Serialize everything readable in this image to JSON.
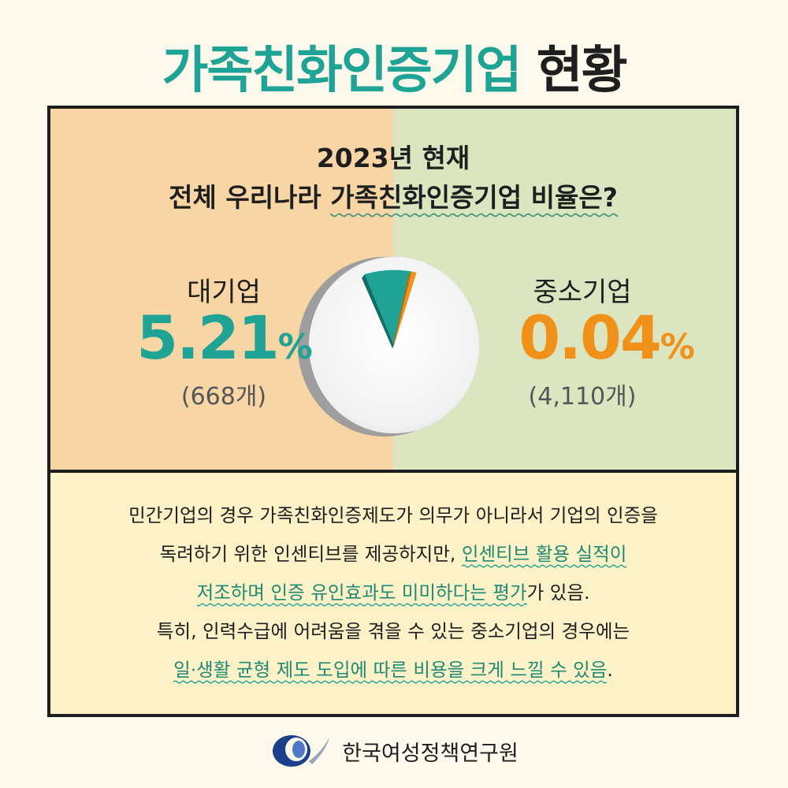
{
  "title": {
    "accent": "가족친화인증기업",
    "rest": "현황"
  },
  "question": {
    "line1": "2023년 현재",
    "line2_prefix": "전체 우리나라 ",
    "line2_highlight": "가족친화인증기업 비율은?"
  },
  "chart_data": {
    "type": "pie",
    "title": "2023년 현재 전체 우리나라 가족친화인증기업 비율은?",
    "categories": [
      "대기업",
      "중소기업"
    ],
    "values": [
      5.21,
      0.04
    ],
    "value_labels": [
      "5.21",
      "0.04"
    ],
    "unit": "%",
    "counts": [
      "(668개)",
      "(4,110개)"
    ],
    "colors": {
      "large": "#1fa394",
      "small": "#f0921a",
      "rest": "#f4f4f4"
    }
  },
  "large": {
    "label": "대기업",
    "value": "5.21",
    "unit": "%",
    "count": "(668개)"
  },
  "small": {
    "label": "중소기업",
    "value": "0.04",
    "unit": "%",
    "count": "(4,110개)"
  },
  "body": {
    "line1": "민간기업의 경우 가족친화인증제도가 의무가 아니라서 기업의 인증을",
    "line2_prefix": "독려하기 위한 인센티브를 제공하지만, ",
    "line2_highlight": "인센티브 활용 실적이",
    "line3_highlight": "저조하며 인증 유인효과도 미미하다는 평가",
    "line3_suffix": "가 있음.",
    "line4": "특히, 인력수급에 어려움을 겪을 수 있는 중소기업의 경우에는",
    "line5_highlight": "일·생활 균형 제도 도입에 따른 비용을 크게 느낄 수 있음",
    "line5_suffix": "."
  },
  "footer": {
    "org_name": "한국여성정책연구원",
    "logo_icon": "kwdi-logo-icon"
  }
}
